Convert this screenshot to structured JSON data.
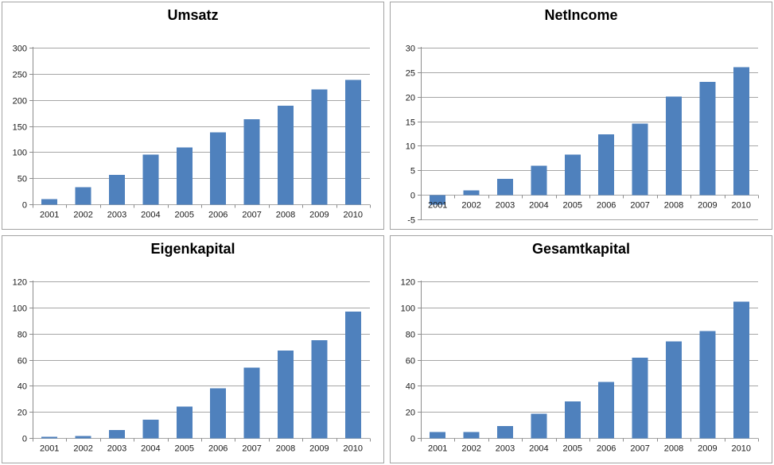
{
  "colors": {
    "bar": "#4F81BD",
    "grid": "#a6a6a6",
    "axis": "#8c8c8c",
    "text": "#1a1a1a",
    "panel_border": "#a3a3a3",
    "background": "#ffffff"
  },
  "chart_data": [
    {
      "type": "bar",
      "title": "Umsatz",
      "categories": [
        "2001",
        "2002",
        "2003",
        "2004",
        "2005",
        "2006",
        "2007",
        "2008",
        "2009",
        "2010"
      ],
      "values": [
        10,
        33,
        56,
        95,
        109,
        138,
        163,
        189,
        220,
        238
      ],
      "xlabel": "",
      "ylabel": "",
      "ylim": [
        0,
        300
      ],
      "ytick_step": 50,
      "grid": true,
      "legend": "none"
    },
    {
      "type": "bar",
      "title": "NetIncome",
      "categories": [
        "2001",
        "2002",
        "2003",
        "2004",
        "2005",
        "2006",
        "2007",
        "2008",
        "2009",
        "2010"
      ],
      "values": [
        -2,
        0.9,
        3.3,
        5.9,
        8.2,
        12.3,
        14.5,
        20,
        23,
        26
      ],
      "xlabel": "",
      "ylabel": "",
      "ylim": [
        -5,
        30
      ],
      "ytick_step": 5,
      "grid": true,
      "legend": "none"
    },
    {
      "type": "bar",
      "title": "Eigenkapital",
      "categories": [
        "2001",
        "2002",
        "2003",
        "2004",
        "2005",
        "2006",
        "2007",
        "2008",
        "2009",
        "2010"
      ],
      "values": [
        1,
        1.5,
        6,
        14,
        24,
        38,
        54,
        67,
        75,
        97
      ],
      "xlabel": "",
      "ylabel": "",
      "ylim": [
        0,
        120
      ],
      "ytick_step": 20,
      "grid": true,
      "legend": "none"
    },
    {
      "type": "bar",
      "title": "Gesamtkapital",
      "categories": [
        "2001",
        "2002",
        "2003",
        "2004",
        "2005",
        "2006",
        "2007",
        "2008",
        "2009",
        "2010"
      ],
      "values": [
        4.5,
        4.5,
        9,
        18.5,
        28,
        43,
        61.5,
        74,
        82,
        104.5
      ],
      "xlabel": "",
      "ylabel": "",
      "ylim": [
        0,
        120
      ],
      "ytick_step": 20,
      "grid": true,
      "legend": "none"
    }
  ]
}
